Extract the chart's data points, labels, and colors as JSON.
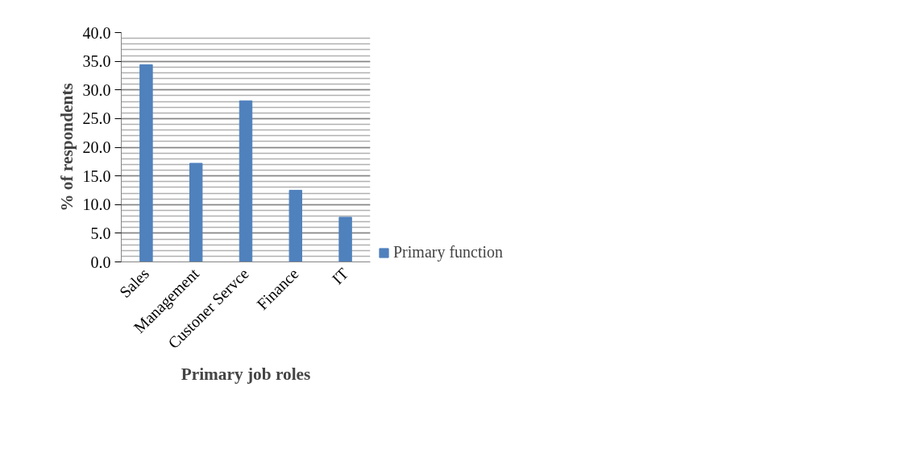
{
  "chart_data": {
    "type": "bar",
    "xlabel": "Primary job roles",
    "ylabel": "% of respondents",
    "categories": [
      "Sales",
      "Management",
      "Custoner Servce",
      "Finance",
      "IT"
    ],
    "series": [
      {
        "name": "Primary function",
        "color": "#4f81bd",
        "values": [
          34.4,
          17.2,
          28.1,
          12.5,
          7.8
        ]
      }
    ],
    "ylim": [
      0,
      40
    ],
    "yticks": [
      {
        "value": 0,
        "label": "0.0"
      },
      {
        "value": 5,
        "label": "5.0"
      },
      {
        "value": 10,
        "label": "10.0"
      },
      {
        "value": 15,
        "label": "15.0"
      },
      {
        "value": 20,
        "label": "20.0"
      },
      {
        "value": 25,
        "label": "25.0"
      },
      {
        "value": 30,
        "label": "30.0"
      },
      {
        "value": 35,
        "label": "35.0"
      },
      {
        "value": 40,
        "label": "40.0"
      }
    ],
    "grid": "y",
    "legend": "right"
  }
}
